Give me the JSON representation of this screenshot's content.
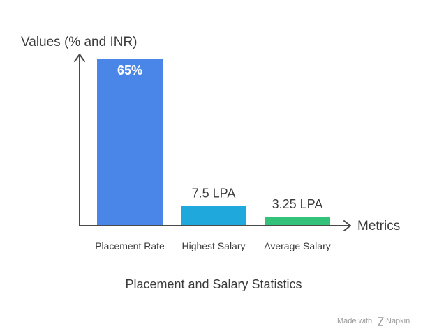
{
  "chart_data": {
    "type": "bar",
    "title": "Placement and Salary Statistics",
    "xlabel": "Metrics",
    "ylabel": "Values (% and INR)",
    "categories": [
      "Placement Rate",
      "Highest Salary",
      "Average Salary"
    ],
    "values": [
      65,
      7.5,
      3.25
    ],
    "data_labels": [
      "65%",
      "7.5 LPA",
      "3.25 LPA"
    ],
    "colors": [
      "#4a86e8",
      "#1fa8db",
      "#33c27a"
    ],
    "ylim": [
      0,
      65
    ],
    "grid": false,
    "legend": "none"
  },
  "watermark": {
    "made_with": "Made with",
    "brand": "Napkin"
  }
}
